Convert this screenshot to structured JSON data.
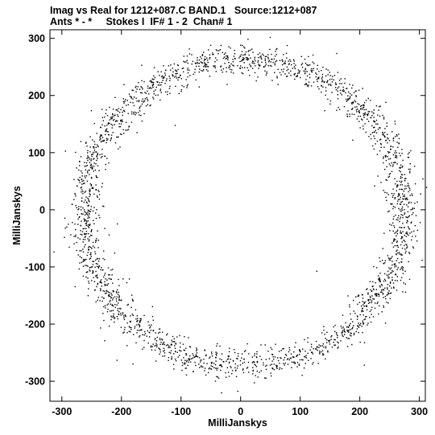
{
  "header": {
    "line1": "Imag vs Real for 1212+087.C BAND.1   Source:1212+087",
    "line2": "Ants * - *     Stokes I  IF# 1 - 2  Chan# 1"
  },
  "chart_data": {
    "type": "scatter",
    "title": "Imag vs Real for 1212+087.C BAND.1   Source:1212+087",
    "subtitle": "Ants * - *     Stokes I  IF# 1 - 2  Chan# 1",
    "xlabel": "MilliJanskys",
    "ylabel": "MilliJanskys",
    "xlim": [
      -320,
      310
    ],
    "ylim": [
      -335,
      315
    ],
    "xticks": [
      -300,
      -200,
      -100,
      0,
      100,
      200,
      300
    ],
    "yticks": [
      -300,
      -200,
      -100,
      0,
      100,
      200,
      300
    ],
    "grid": false,
    "marker_color": "#000000",
    "series": [
      {
        "ring_center": [
          5,
          -5
        ],
        "ring_radius": 268,
        "ring_spread": 13,
        "point_count": 2600,
        "sample_points": [
          [
            -270,
            0
          ],
          [
            270,
            -20
          ],
          [
            0,
            275
          ],
          [
            0,
            -275
          ],
          [
            -190,
            190
          ],
          [
            190,
            190
          ],
          [
            -190,
            -200
          ],
          [
            190,
            -200
          ]
        ]
      }
    ]
  }
}
